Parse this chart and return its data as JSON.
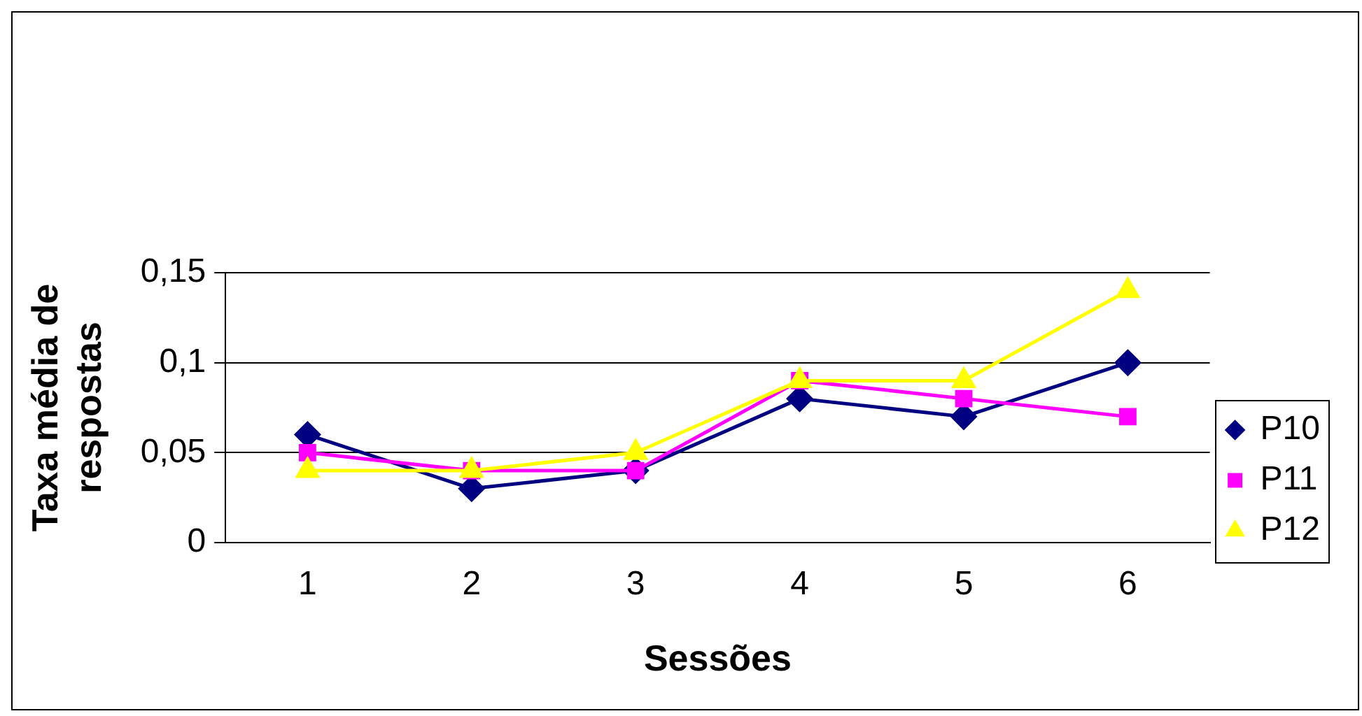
{
  "chart_data": {
    "type": "line",
    "xlabel": "Sessões",
    "ylabel": "Taxa média de respostas",
    "categories": [
      "1",
      "2",
      "3",
      "4",
      "5",
      "6"
    ],
    "series": [
      {
        "name": "P10",
        "color": "#000080",
        "marker": "diamond",
        "values": [
          0.06,
          0.03,
          0.04,
          0.08,
          0.07,
          0.1
        ]
      },
      {
        "name": "P11",
        "color": "#ff00ff",
        "marker": "square",
        "values": [
          0.05,
          0.04,
          0.04,
          0.09,
          0.08,
          0.07
        ]
      },
      {
        "name": "P12",
        "color": "#ffff00",
        "marker": "triangle",
        "values": [
          0.04,
          0.04,
          0.05,
          0.09,
          0.09,
          0.14
        ]
      }
    ],
    "ylim": [
      0,
      0.15
    ],
    "yticks": [
      0,
      {
        "value": 0.05,
        "label": "0,05"
      },
      {
        "value": 0.1,
        "label": "0,1"
      },
      {
        "value": 0.15,
        "label": "0,15"
      }
    ],
    "grid": "y",
    "legend": "right"
  }
}
